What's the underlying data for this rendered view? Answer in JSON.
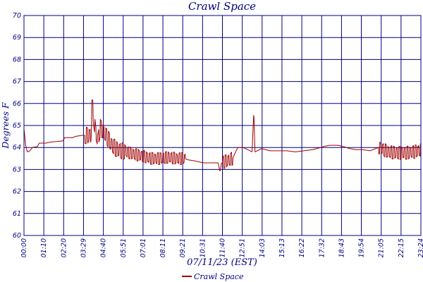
{
  "chart_data": {
    "type": "line",
    "title": "Crawl Space",
    "xlabel": "07/11/23 (EST)",
    "ylabel": "Degrees F",
    "ylim": [
      60,
      70
    ],
    "yticks": [
      "60",
      "61",
      "62",
      "63",
      "64",
      "65",
      "66",
      "67",
      "68",
      "69",
      "70"
    ],
    "xticks": [
      "00:00",
      "01:10",
      "02:20",
      "03:29",
      "04:40",
      "05:51",
      "07:01",
      "08:11",
      "09:21",
      "10:31",
      "11:40",
      "12:51",
      "14:03",
      "15:13",
      "16:22",
      "17:32",
      "18:43",
      "19:54",
      "21:05",
      "22:15",
      "23:24"
    ],
    "xlim_hours": [
      0,
      23.4
    ],
    "grid": true,
    "legend_position": "bottom",
    "series": [
      {
        "name": "Crawl Space",
        "color": "#a00000",
        "oscillating_segments": [
          [
            3.6,
            6.0
          ],
          [
            6.0,
            9.5
          ],
          [
            11.7,
            12.3
          ],
          [
            20.9,
            23.4
          ]
        ],
        "points": [
          [
            0.0,
            64.85
          ],
          [
            0.1,
            64.1
          ],
          [
            0.2,
            63.8
          ],
          [
            0.35,
            63.85
          ],
          [
            0.5,
            64.0
          ],
          [
            0.8,
            64.05
          ],
          [
            0.9,
            64.2
          ],
          [
            1.3,
            64.2
          ],
          [
            1.6,
            64.25
          ],
          [
            2.3,
            64.3
          ],
          [
            2.4,
            64.45
          ],
          [
            2.9,
            64.45
          ],
          [
            3.0,
            64.5
          ],
          [
            3.4,
            64.55
          ],
          [
            3.95,
            64.55
          ],
          [
            4.0,
            65.8
          ],
          [
            4.05,
            65.8
          ],
          [
            4.15,
            65.1
          ],
          [
            4.25,
            64.6
          ],
          [
            4.35,
            64.3
          ],
          [
            4.5,
            64.9
          ],
          [
            4.8,
            64.6
          ],
          [
            5.2,
            64.1
          ],
          [
            5.5,
            63.9
          ],
          [
            6.0,
            63.8
          ],
          [
            6.5,
            63.7
          ],
          [
            7.0,
            63.6
          ],
          [
            7.5,
            63.5
          ],
          [
            8.0,
            63.5
          ],
          [
            8.5,
            63.55
          ],
          [
            9.0,
            63.5
          ],
          [
            9.5,
            63.5
          ],
          [
            9.6,
            63.45
          ],
          [
            10.0,
            63.4
          ],
          [
            10.6,
            63.3
          ],
          [
            11.2,
            63.3
          ],
          [
            11.45,
            63.3
          ],
          [
            11.55,
            62.9
          ],
          [
            11.65,
            63.3
          ],
          [
            12.3,
            63.5
          ],
          [
            12.6,
            64.0
          ],
          [
            12.9,
            64.0
          ],
          [
            13.2,
            63.9
          ],
          [
            13.45,
            63.8
          ],
          [
            13.55,
            65.65
          ],
          [
            13.62,
            63.8
          ],
          [
            14.0,
            63.95
          ],
          [
            14.5,
            63.85
          ],
          [
            15.0,
            63.85
          ],
          [
            15.5,
            63.85
          ],
          [
            16.0,
            63.8
          ],
          [
            16.5,
            63.85
          ],
          [
            17.0,
            63.9
          ],
          [
            17.5,
            64.0
          ],
          [
            17.7,
            64.05
          ],
          [
            18.0,
            64.1
          ],
          [
            18.5,
            64.1
          ],
          [
            18.8,
            64.05
          ],
          [
            19.2,
            63.95
          ],
          [
            19.6,
            63.9
          ],
          [
            20.0,
            63.9
          ],
          [
            20.4,
            63.85
          ],
          [
            20.9,
            64.0
          ],
          [
            21.5,
            63.8
          ],
          [
            22.0,
            63.75
          ],
          [
            22.5,
            63.75
          ],
          [
            23.0,
            63.8
          ],
          [
            23.4,
            63.9
          ]
        ]
      }
    ]
  }
}
